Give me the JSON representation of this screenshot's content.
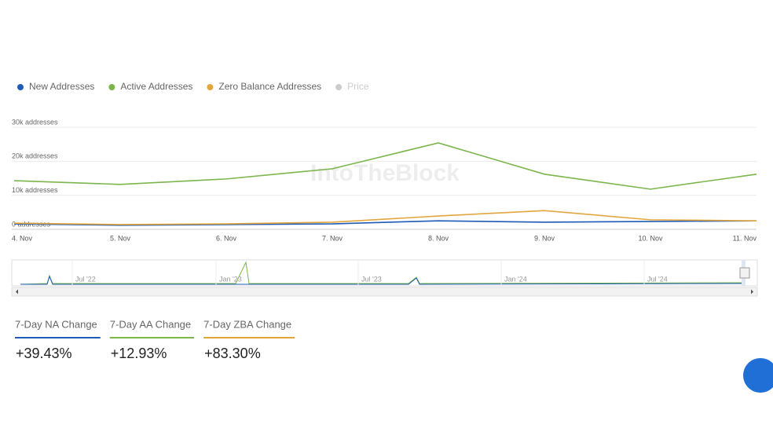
{
  "chart_data": {
    "type": "line",
    "watermark": "IntoTheBlock",
    "categories": [
      "4. Nov",
      "5. Nov",
      "6. Nov",
      "7. Nov",
      "8. Nov",
      "9. Nov",
      "10. Nov",
      "11. Nov"
    ],
    "series": [
      {
        "name": "New Addresses",
        "color": "#1f5bb5",
        "visible": true,
        "values": [
          1600,
          1200,
          1400,
          1600,
          2500,
          2100,
          2300,
          2500
        ]
      },
      {
        "name": "Active Addresses",
        "color": "#7cb54c",
        "visible": true,
        "values": [
          14300,
          13200,
          14800,
          17800,
          25400,
          16200,
          11800,
          16200
        ]
      },
      {
        "name": "Zero Balance Addresses",
        "color": "#e3a63f",
        "visible": true,
        "values": [
          1800,
          1400,
          1600,
          2100,
          3900,
          5500,
          2800,
          2500
        ]
      },
      {
        "name": "Price",
        "color": "#cccccc",
        "visible": false,
        "values": [
          null,
          null,
          null,
          null,
          null,
          null,
          null,
          null
        ]
      }
    ],
    "ylim": [
      0,
      30000
    ],
    "yticks": [
      {
        "value": 0,
        "label": "0 addresses"
      },
      {
        "value": 10000,
        "label": "10k addresses"
      },
      {
        "value": 20000,
        "label": "20k addresses"
      },
      {
        "value": 30000,
        "label": "30k addresses"
      }
    ],
    "grid": true,
    "navigator_labels": [
      "Jul '22",
      "Jan '23",
      "Jul '23",
      "Jan '24",
      "Jul '24"
    ]
  },
  "stats": [
    {
      "label": "7-Day NA Change",
      "value": "+39.43%",
      "color": "#1f5bb5"
    },
    {
      "label": "7-Day AA Change",
      "value": "+12.93%",
      "color": "#7cb54c"
    },
    {
      "label": "7-Day ZBA Change",
      "value": "+83.30%",
      "color": "#e3a63f"
    }
  ]
}
